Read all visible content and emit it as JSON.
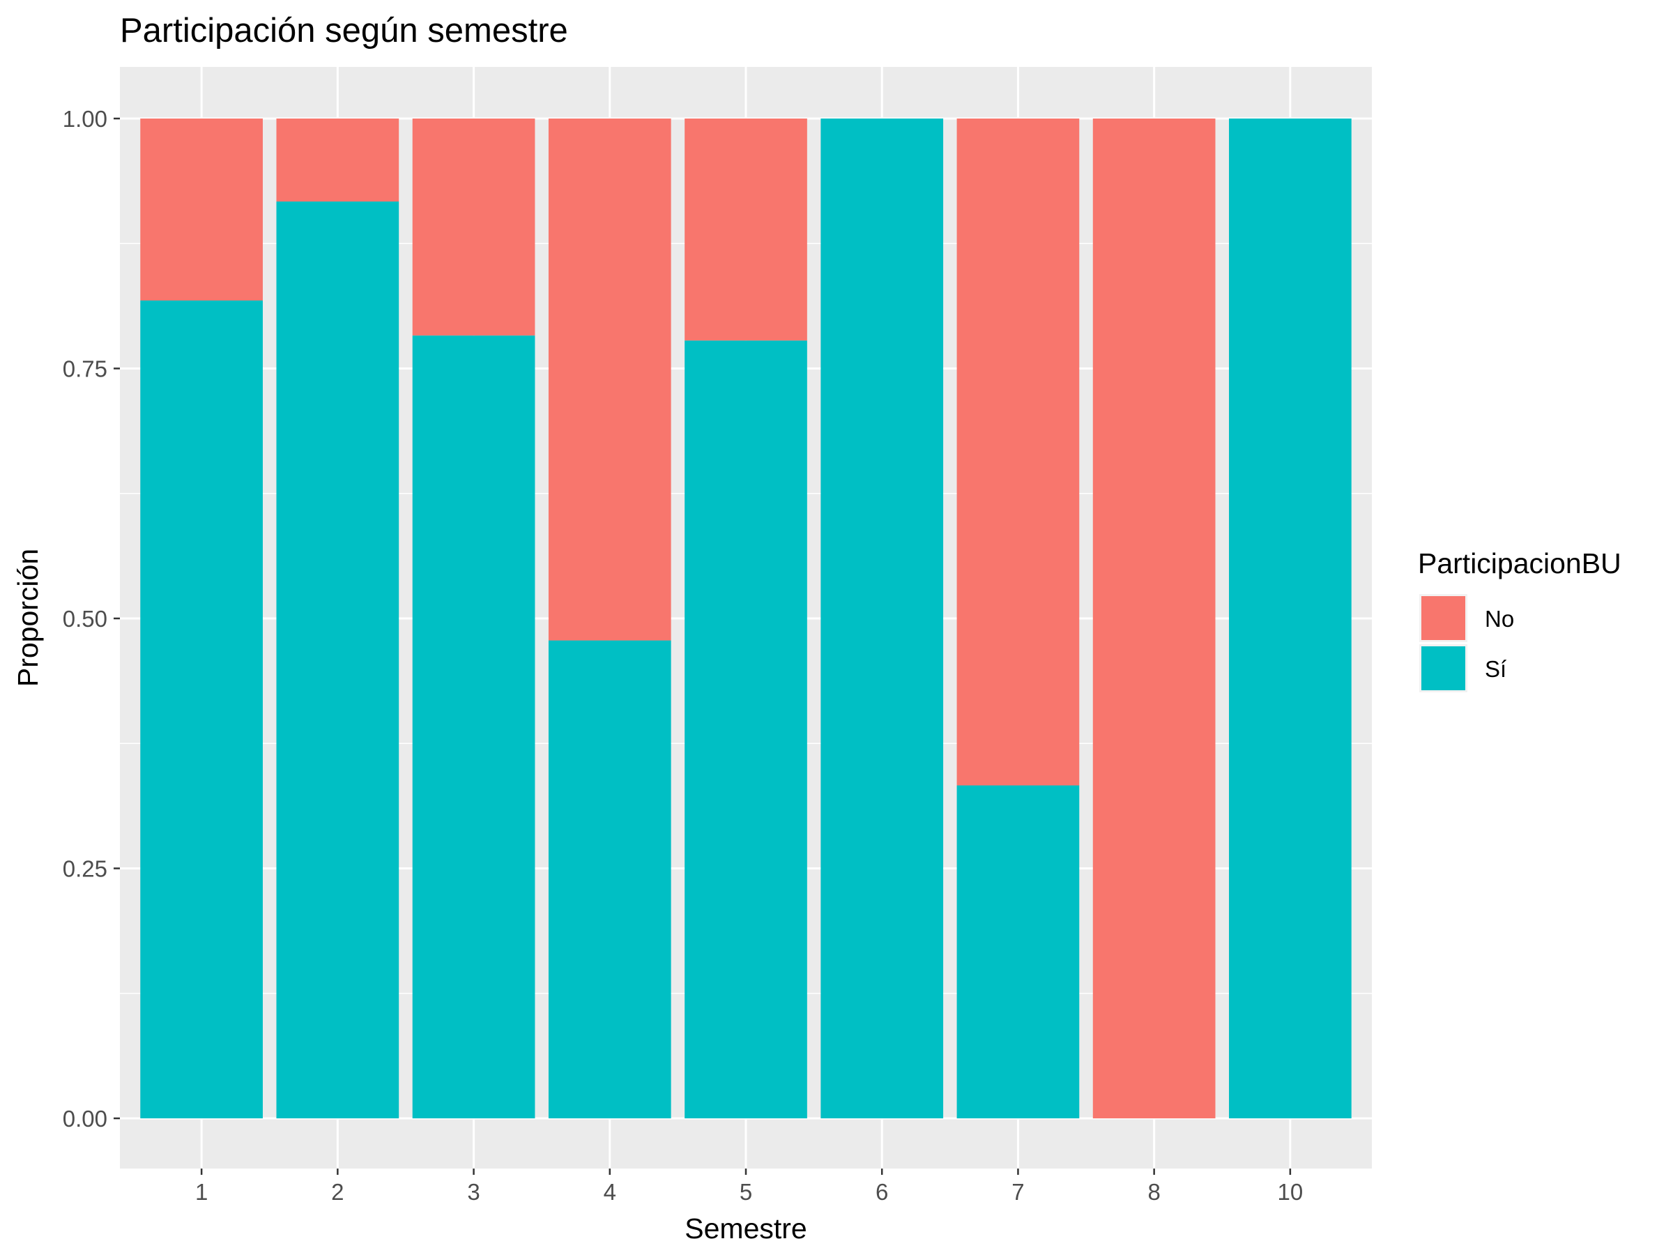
{
  "chart_data": {
    "type": "bar",
    "stacked": true,
    "title": "Participación según semestre",
    "xlabel": "Semestre",
    "ylabel": "Proporción",
    "categories": [
      "1",
      "2",
      "3",
      "4",
      "5",
      "6",
      "7",
      "8",
      "10"
    ],
    "ylim": [
      0,
      1
    ],
    "y_ticks": [
      "0.00",
      "0.25",
      "0.50",
      "0.75",
      "1.00"
    ],
    "grid": true,
    "legend": {
      "title": "ParticipacionBU",
      "position": "right",
      "entries": [
        "No",
        "Sí"
      ]
    },
    "series": [
      {
        "name": "Sí",
        "color": "#00BFC4",
        "values": [
          0.818,
          0.917,
          0.783,
          0.478,
          0.778,
          1.0,
          0.333,
          0.0,
          1.0
        ]
      },
      {
        "name": "No",
        "color": "#F8766D",
        "values": [
          0.182,
          0.083,
          0.217,
          0.522,
          0.222,
          0.0,
          0.667,
          1.0,
          0.0
        ]
      }
    ],
    "panel_color": "#EBEBEB",
    "grid_color": "#FFFFFF"
  }
}
